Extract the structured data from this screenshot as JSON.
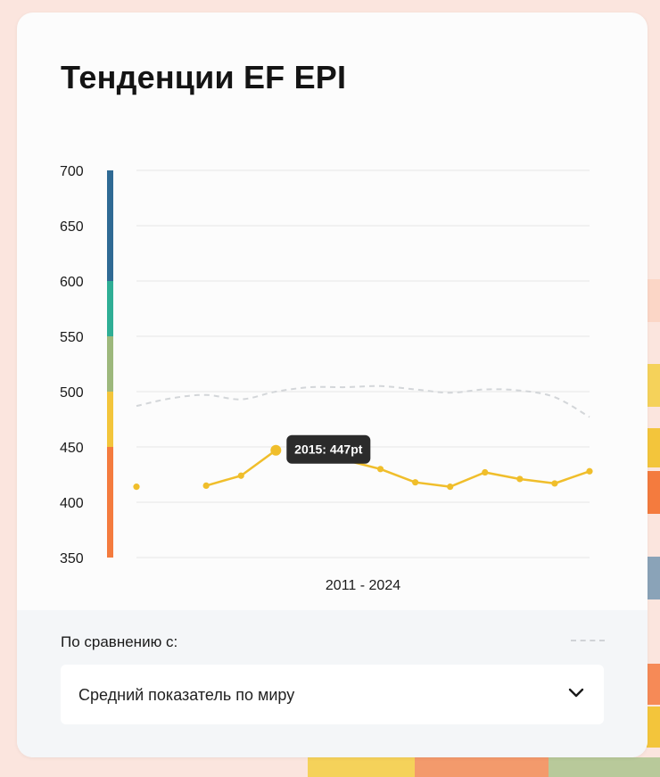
{
  "title": "Тенденции EF EPI",
  "compare": {
    "label": "По сравнению с:",
    "selected": "Средний показатель по миру"
  },
  "tooltip": {
    "text": "2015: 447pt"
  },
  "icons": {
    "dropdown": "chevron-down-icon"
  },
  "colors": {
    "series": "#f0be2b",
    "comparison": "#d3d6d9",
    "tooltip_bg": "#2b2b2b",
    "grid": "#e6e6e6"
  },
  "chart_data": {
    "type": "line",
    "xlabel": "2011 - 2024",
    "ylabel": "",
    "ylim": [
      350,
      700
    ],
    "yticks": [
      700,
      650,
      600,
      550,
      500,
      450,
      400,
      350
    ],
    "x": [
      2011,
      2012,
      2013,
      2014,
      2015,
      2016,
      2017,
      2018,
      2019,
      2020,
      2021,
      2022,
      2023,
      2024
    ],
    "series": [
      {
        "values": [
          414,
          null,
          415,
          424,
          447,
          null,
          438,
          430,
          418,
          414,
          427,
          421,
          417,
          428
        ],
        "color": "#f0be2b"
      },
      {
        "values": [
          487,
          494,
          497,
          493,
          500,
          504,
          504,
          505,
          502,
          499,
          502,
          501,
          495,
          477
        ],
        "color": "#d3d6d9",
        "dashed": true
      }
    ],
    "proficiency_bands": [
      {
        "from": 350,
        "to": 450,
        "color": "#f47b3e"
      },
      {
        "from": 450,
        "to": 500,
        "color": "#f3c53b"
      },
      {
        "from": 500,
        "to": 550,
        "color": "#9db87c"
      },
      {
        "from": 550,
        "to": 600,
        "color": "#2fae95"
      },
      {
        "from": 600,
        "to": 700,
        "color": "#2f6a94"
      }
    ],
    "highlight": {
      "x": 2015,
      "value": 447
    },
    "grid": true
  }
}
